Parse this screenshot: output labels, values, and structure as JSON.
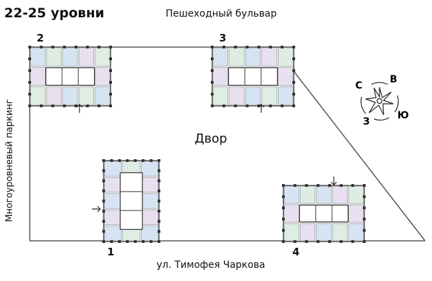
{
  "title": "22-25 уровни",
  "labels": {
    "top_street": "Пешеходный бульвар",
    "yard": "Двор",
    "bottom_street": "ул. Тимофея Чаркова",
    "parking": "Многоуровневый паркинг"
  },
  "buildings": [
    {
      "number": "2",
      "entrance": "bottom"
    },
    {
      "number": "3",
      "entrance": "bottom"
    },
    {
      "number": "1",
      "entrance": "left"
    },
    {
      "number": "4",
      "entrance": "top"
    }
  ],
  "compass": {
    "north": "С",
    "east": "В",
    "south": "Ю",
    "west": "З"
  },
  "colors": {
    "line": "#555555",
    "blue": "#cfe0f2",
    "purple": "#e6dcf0",
    "green": "#d9ecdf"
  }
}
